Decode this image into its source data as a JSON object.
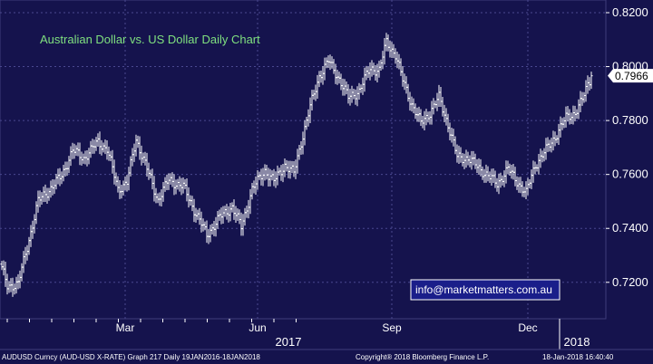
{
  "chart_data": {
    "type": "ohlc",
    "title": "Australian Dollar vs. US Dollar Daily Chart",
    "ylim": [
      0.7065,
      0.8247
    ],
    "yticks": [
      "0.8200",
      "0.8000",
      "0.7800",
      "0.7600",
      "0.7400",
      "0.7200"
    ],
    "ytick_values": [
      0.82,
      0.8,
      0.78,
      0.76,
      0.74,
      0.72
    ],
    "xticks": [
      "Mar",
      "Jun",
      "Sep",
      "Dec"
    ],
    "year_labels": [
      "2017",
      "2018"
    ],
    "last_value": 0.7966,
    "last_value_label": "0.7966",
    "grid": true,
    "series_color": "#ffffff",
    "background": "#15134d",
    "anchors": [
      [
        0,
        0.725
      ],
      [
        3,
        0.7185
      ],
      [
        9,
        0.7195
      ],
      [
        14,
        0.733
      ],
      [
        20,
        0.75
      ],
      [
        27,
        0.755
      ],
      [
        33,
        0.7595
      ],
      [
        39,
        0.769
      ],
      [
        45,
        0.766
      ],
      [
        53,
        0.772
      ],
      [
        58,
        0.7695
      ],
      [
        64,
        0.7545
      ],
      [
        69,
        0.757
      ],
      [
        74,
        0.773
      ],
      [
        79,
        0.764
      ],
      [
        86,
        0.7505
      ],
      [
        92,
        0.758
      ],
      [
        100,
        0.7555
      ],
      [
        106,
        0.747
      ],
      [
        113,
        0.7375
      ],
      [
        120,
        0.744
      ],
      [
        127,
        0.748
      ],
      [
        132,
        0.7405
      ],
      [
        138,
        0.7545
      ],
      [
        145,
        0.7615
      ],
      [
        150,
        0.7575
      ],
      [
        156,
        0.7635
      ],
      [
        161,
        0.7605
      ],
      [
        165,
        0.772
      ],
      [
        170,
        0.785
      ],
      [
        175,
        0.7965
      ],
      [
        180,
        0.802
      ],
      [
        186,
        0.7955
      ],
      [
        191,
        0.7885
      ],
      [
        197,
        0.791
      ],
      [
        203,
        0.7995
      ],
      [
        208,
        0.7985
      ],
      [
        212,
        0.809
      ],
      [
        217,
        0.8045
      ],
      [
        221,
        0.795
      ],
      [
        226,
        0.786
      ],
      [
        231,
        0.779
      ],
      [
        236,
        0.783
      ],
      [
        241,
        0.7885
      ],
      [
        246,
        0.7785
      ],
      [
        251,
        0.7665
      ],
      [
        257,
        0.766
      ],
      [
        262,
        0.763
      ],
      [
        268,
        0.7595
      ],
      [
        273,
        0.7565
      ],
      [
        279,
        0.762
      ],
      [
        284,
        0.7575
      ],
      [
        289,
        0.753
      ],
      [
        294,
        0.7635
      ],
      [
        300,
        0.769
      ],
      [
        305,
        0.774
      ],
      [
        311,
        0.781
      ],
      [
        316,
        0.783
      ],
      [
        320,
        0.7875
      ],
      [
        323,
        0.7935
      ],
      [
        325,
        0.7965
      ]
    ]
  },
  "footer": {
    "left": "AUDUSD Curncy (AUD-USD X-RATE) Graph 217  Daily 19JAN2016-18JAN2018",
    "center": "Copyright® 2018 Bloomberg Finance L.P.",
    "right": "18-Jan-2018 16:40:40"
  },
  "watermark": "info@marketmatters.com.au"
}
